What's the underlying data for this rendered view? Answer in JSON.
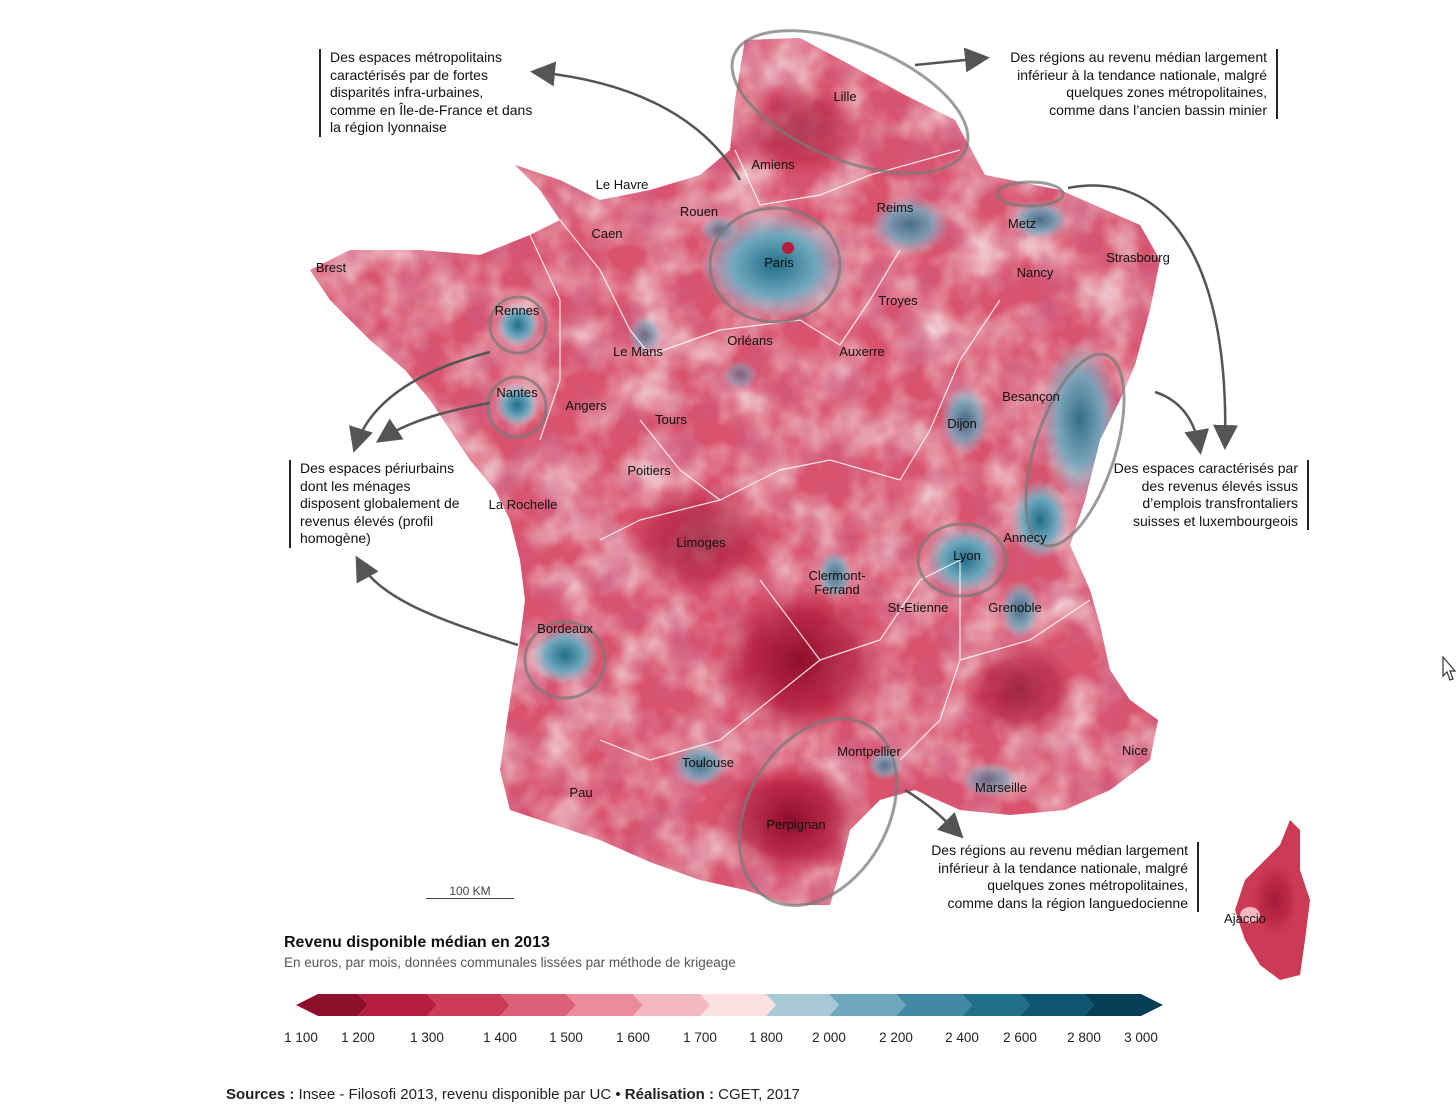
{
  "map": {
    "cities": [
      {
        "name": "Lille",
        "key": "lille"
      },
      {
        "name": "Amiens",
        "key": "amiens"
      },
      {
        "name": "Le Havre",
        "key": "le-havre"
      },
      {
        "name": "Rouen",
        "key": "rouen"
      },
      {
        "name": "Reims",
        "key": "reims"
      },
      {
        "name": "Metz",
        "key": "metz"
      },
      {
        "name": "Caen",
        "key": "caen"
      },
      {
        "name": "Paris",
        "key": "paris"
      },
      {
        "name": "Strasbourg",
        "key": "strasbourg"
      },
      {
        "name": "Nancy",
        "key": "nancy"
      },
      {
        "name": "Brest",
        "key": "brest"
      },
      {
        "name": "Troyes",
        "key": "troyes"
      },
      {
        "name": "Rennes",
        "key": "rennes"
      },
      {
        "name": "Orléans",
        "key": "orleans"
      },
      {
        "name": "Le Mans",
        "key": "le-mans"
      },
      {
        "name": "Auxerre",
        "key": "auxerre"
      },
      {
        "name": "Nantes",
        "key": "nantes"
      },
      {
        "name": "Besançon",
        "key": "besancon"
      },
      {
        "name": "Angers",
        "key": "angers"
      },
      {
        "name": "Tours",
        "key": "tours"
      },
      {
        "name": "Dijon",
        "key": "dijon"
      },
      {
        "name": "Poitiers",
        "key": "poitiers"
      },
      {
        "name": "La Rochelle",
        "key": "la-rochelle"
      },
      {
        "name": "Annecy",
        "key": "annecy"
      },
      {
        "name": "Limoges",
        "key": "limoges"
      },
      {
        "name": "Lyon",
        "key": "lyon"
      },
      {
        "name": "Clermont-\nFerrand",
        "key": "clermont-ferrand"
      },
      {
        "name": "St-Etienne",
        "key": "st-etienne"
      },
      {
        "name": "Grenoble",
        "key": "grenoble"
      },
      {
        "name": "Bordeaux",
        "key": "bordeaux"
      },
      {
        "name": "Nice",
        "key": "nice"
      },
      {
        "name": "Montpellier",
        "key": "montpellier"
      },
      {
        "name": "Toulouse",
        "key": "toulouse"
      },
      {
        "name": "Marseille",
        "key": "marseille"
      },
      {
        "name": "Pau",
        "key": "pau"
      },
      {
        "name": "Perpignan",
        "key": "perpignan"
      },
      {
        "name": "Ajaccio",
        "key": "ajaccio"
      }
    ],
    "scale_label": "100 KM"
  },
  "annotations": {
    "metropolitan": [
      "Des espaces métropolitains",
      "caractérisés par de fortes",
      "disparités infra-urbaines,",
      "comme en Île-de-France et dans",
      "la région lyonnaise"
    ],
    "north": [
      "Des régions au revenu médian largement",
      "inférieur à la tendance nationale, malgré",
      "quelques zones métropolitaines,",
      "comme dans l’ancien bassin minier"
    ],
    "periurban": [
      "Des espaces périurbains",
      "dont les ménages",
      "disposent globalement de",
      "revenus élevés (profil",
      "homogène)"
    ],
    "crossborder": [
      "Des espaces caractérisés par",
      "des revenus élevés issus",
      "d’emplois transfrontaliers",
      "suisses et luxembourgeois"
    ],
    "south": [
      "Des régions au revenu médian largement",
      "inférieur à la tendance nationale, malgré",
      "quelques zones métropolitaines,",
      "comme dans la région languedocienne"
    ]
  },
  "legend": {
    "title": "Revenu disponible médian en 2013",
    "subtitle": "En euros, par mois, données communales lissées par méthode de krigeage",
    "ticks": [
      "1 100",
      "1 200",
      "1 300",
      "1 400",
      "1 500",
      "1 600",
      "1 700",
      "1 800",
      "2 000",
      "2 200",
      "2 400",
      "2 600",
      "2 800",
      "3 000"
    ],
    "colors": [
      "#8e0f2c",
      "#b51d3e",
      "#cc3b55",
      "#dc6178",
      "#ea8c9c",
      "#f4b8c1",
      "#fbe0e2",
      "#a9c8d6",
      "#6fa7bd",
      "#428aa3",
      "#226f89",
      "#0e5670",
      "#053f57"
    ]
  },
  "sources": {
    "sources_label": "Sources :",
    "sources_text": " Insee - Filosofi 2013, revenu disponible par UC • ",
    "credit_label": "Réalisation :",
    "credit_text": " CGET, 2017"
  }
}
